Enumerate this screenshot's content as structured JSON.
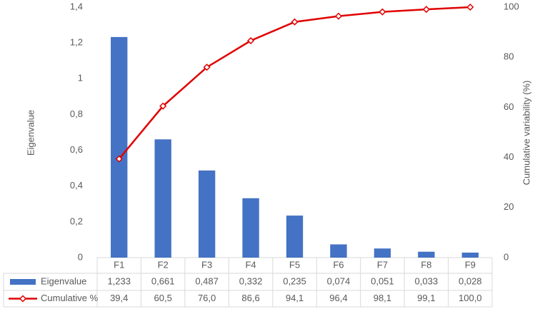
{
  "chart_data": {
    "type": "bar",
    "categories": [
      "F1",
      "F2",
      "F3",
      "F4",
      "F5",
      "F6",
      "F7",
      "F8",
      "F9"
    ],
    "series": [
      {
        "name": "Eigenvalue",
        "color": "#4472c4",
        "values": [
          1.233,
          0.661,
          0.487,
          0.332,
          0.235,
          0.074,
          0.051,
          0.033,
          0.028
        ],
        "value_labels": [
          "1,233",
          "0,661",
          "0,487",
          "0,332",
          "0,235",
          "0,074",
          "0,051",
          "0,033",
          "0,028"
        ]
      },
      {
        "name": "Cumulative %",
        "color": "#e00000",
        "type": "line",
        "axis": "y2",
        "values": [
          39.4,
          60.5,
          76.0,
          86.6,
          94.1,
          96.4,
          98.1,
          99.1,
          100.0
        ],
        "value_labels": [
          "39,4",
          "60,5",
          "76,0",
          "86,6",
          "94,1",
          "96,4",
          "98,1",
          "99,1",
          "100,0"
        ]
      }
    ],
    "ylabel": "Eigenvalue",
    "y2label": "Cumulative variability (%)",
    "ylim": [
      0,
      1.4
    ],
    "yticks": [
      0,
      {
        "value": 0.2,
        "label": "0,2"
      },
      {
        "value": 0.4,
        "label": "0,4"
      },
      {
        "value": 0.6,
        "label": "0,6"
      },
      {
        "value": 0.8,
        "label": "0,8"
      },
      1,
      {
        "value": 1.2,
        "label": "1,2"
      },
      {
        "value": 1.4,
        "label": "1,4"
      }
    ],
    "y2lim": [
      0,
      100
    ],
    "y2ticks": [
      0,
      20,
      40,
      60,
      80,
      100
    ]
  }
}
